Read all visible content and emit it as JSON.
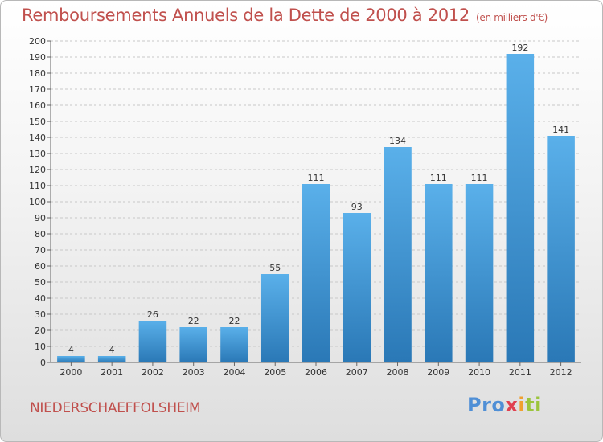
{
  "title": "Remboursements Annuels de la Dette de 2000 à 2012",
  "subtitle": "(en milliers d'€)",
  "commune": "NIEDERSCHAEFFOLSHEIM",
  "logo": {
    "p1": "Pro",
    "p2": "x",
    "p3": "i",
    "p4": "ti"
  },
  "colors": {
    "bar_top": "#5aaee8",
    "bar_bottom": "#2a7ab8",
    "title": "#c0504d"
  },
  "chart_data": {
    "type": "bar",
    "title": "Remboursements Annuels de la Dette de 2000 à 2012",
    "subtitle": "(en milliers d'€)",
    "categories": [
      "2000",
      "2001",
      "2002",
      "2003",
      "2004",
      "2005",
      "2006",
      "2007",
      "2008",
      "2009",
      "2010",
      "2011",
      "2012"
    ],
    "values": [
      4,
      4,
      26,
      22,
      22,
      55,
      111,
      93,
      134,
      111,
      111,
      192,
      141
    ],
    "ylim": [
      0,
      200
    ],
    "yticks": [
      0,
      10,
      20,
      30,
      40,
      50,
      60,
      70,
      80,
      90,
      100,
      110,
      120,
      130,
      140,
      150,
      160,
      170,
      180,
      190,
      200
    ],
    "grid": "horizontal dashed"
  }
}
